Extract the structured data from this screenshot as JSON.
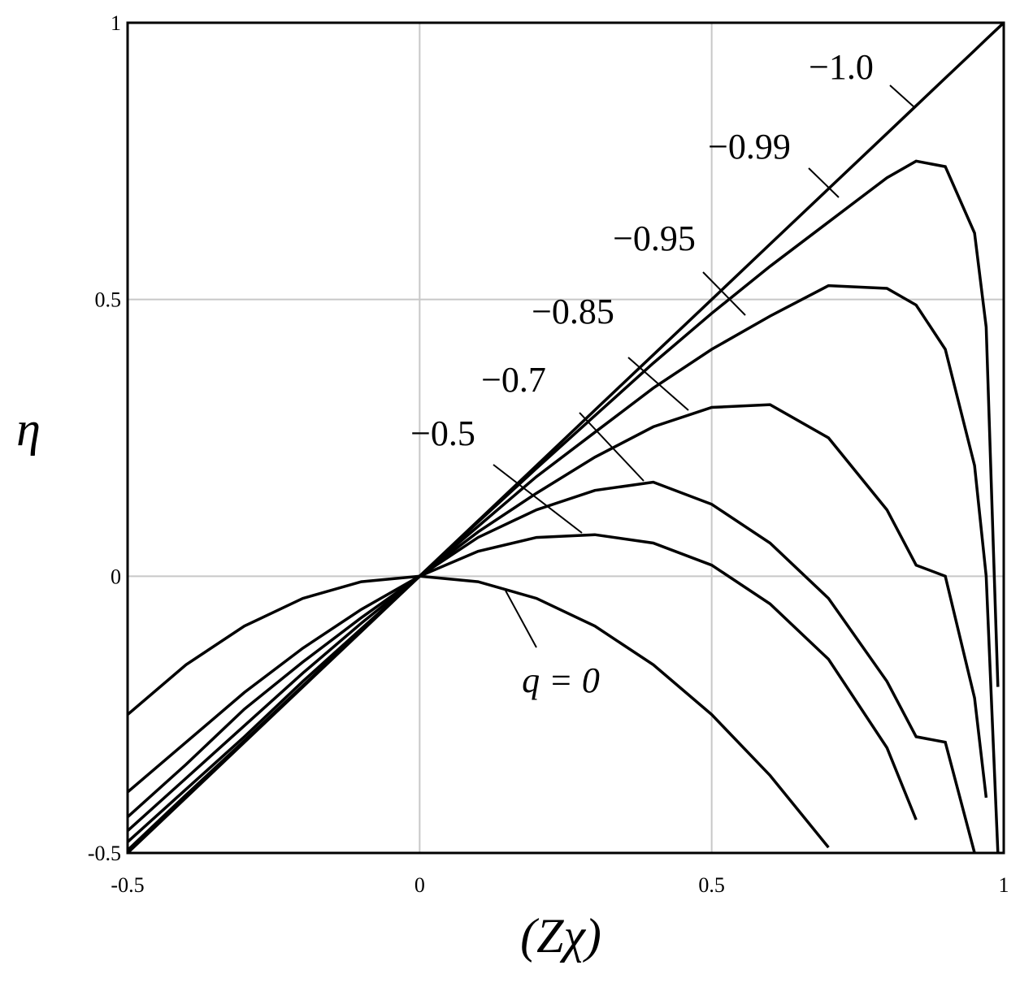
{
  "chart_data": {
    "type": "line",
    "x_label": "(Zχ)",
    "y_label": "η",
    "x": [
      -0.5,
      -0.4,
      -0.3,
      -0.2,
      -0.1,
      0,
      0.1,
      0.2,
      0.3,
      0.4,
      0.5,
      0.6,
      0.7,
      0.8,
      0.85,
      0.9,
      0.95,
      0.97,
      0.99,
      1.0
    ],
    "series": [
      {
        "name": "q = 0",
        "color": "#000000",
        "values": [
          -0.25,
          -0.16,
          -0.09,
          -0.04,
          -0.01,
          0,
          -0.01,
          -0.04,
          -0.09,
          -0.16,
          -0.25,
          -0.36,
          -0.49,
          null,
          null,
          null,
          null,
          null,
          null,
          null
        ]
      },
      {
        "name": "−0.5",
        "color": "#000000",
        "values": [
          -0.39,
          -0.3,
          -0.21,
          -0.13,
          -0.06,
          0,
          0.045,
          0.07,
          0.075,
          0.06,
          0.02,
          -0.05,
          -0.15,
          -0.31,
          -0.44,
          null,
          null,
          null,
          null,
          null
        ]
      },
      {
        "name": "−0.7",
        "color": "#000000",
        "values": [
          -0.435,
          -0.34,
          -0.24,
          -0.155,
          -0.075,
          0,
          0.07,
          0.12,
          0.155,
          0.17,
          0.13,
          0.06,
          -0.04,
          -0.19,
          -0.29,
          -0.3,
          -0.5,
          null,
          null,
          null
        ]
      },
      {
        "name": "−0.85",
        "color": "#000000",
        "values": [
          -0.46,
          -0.365,
          -0.27,
          -0.175,
          -0.085,
          0,
          0.08,
          0.15,
          0.215,
          0.27,
          0.305,
          0.31,
          0.25,
          0.12,
          0.02,
          0.0,
          -0.22,
          -0.4,
          null,
          null
        ]
      },
      {
        "name": "−0.95",
        "color": "#000000",
        "values": [
          -0.48,
          -0.385,
          -0.29,
          -0.19,
          -0.095,
          0,
          0.09,
          0.18,
          0.26,
          0.34,
          0.41,
          0.47,
          0.525,
          0.52,
          0.49,
          0.41,
          0.2,
          0.0,
          -0.5,
          null
        ]
      },
      {
        "name": "−0.99",
        "color": "#000000",
        "values": [
          -0.495,
          -0.395,
          -0.297,
          -0.198,
          -0.099,
          0,
          0.098,
          0.195,
          0.29,
          0.385,
          0.475,
          0.56,
          0.64,
          0.72,
          0.75,
          0.74,
          0.62,
          0.45,
          -0.2,
          null
        ]
      },
      {
        "name": "−1.0",
        "color": "#000000",
        "values": [
          -0.5,
          -0.4,
          -0.3,
          -0.2,
          -0.1,
          0,
          0.1,
          0.2,
          0.3,
          0.4,
          0.5,
          0.6,
          0.7,
          0.8,
          0.85,
          0.9,
          0.95,
          0.97,
          0.99,
          1.0
        ]
      }
    ],
    "xlim": [
      -0.5,
      1
    ],
    "ylim": [
      -0.5,
      1
    ],
    "xticks": [
      -0.5,
      0,
      0.5,
      1
    ],
    "yticks": [
      -0.5,
      0,
      0.5,
      1
    ],
    "grid": true
  }
}
